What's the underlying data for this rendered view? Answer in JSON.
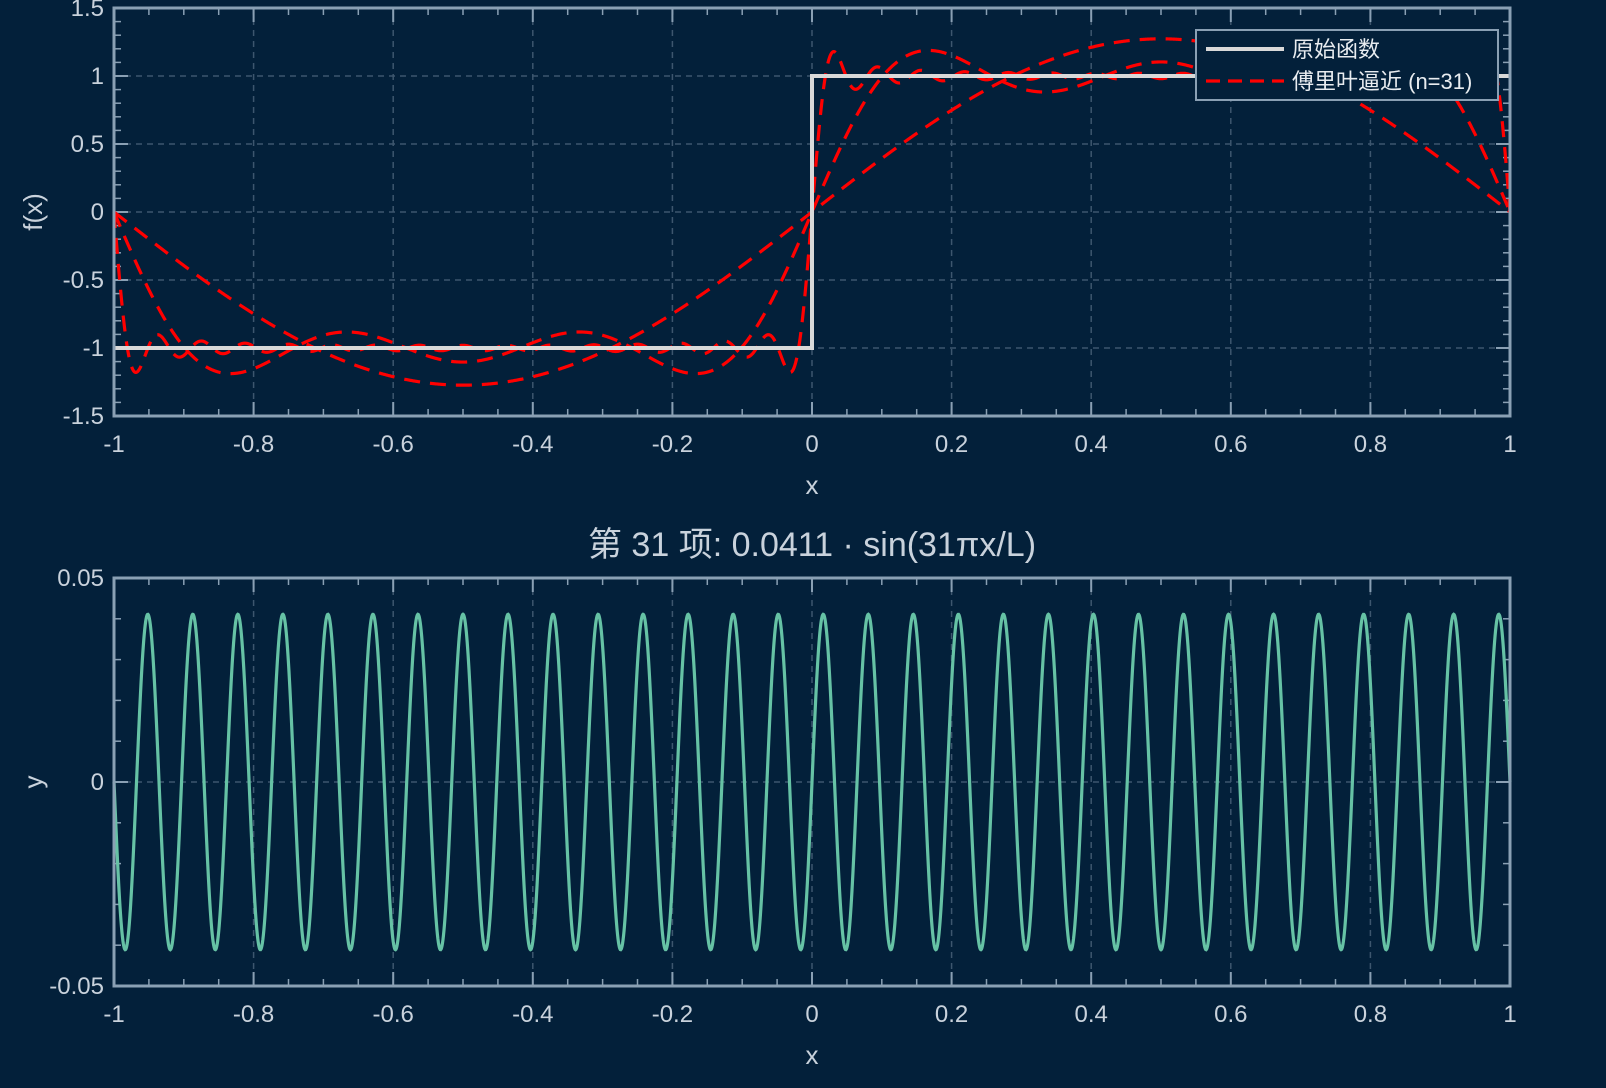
{
  "colors": {
    "background": "#03203a",
    "axes_frame": "#8aa0b4",
    "grid": "#3d566e",
    "text": "#c9d2dc",
    "original": "#d9d9d9",
    "approx": "#ff0000",
    "term": "#66c2a5"
  },
  "chart_data": [
    {
      "type": "line",
      "title": "",
      "xlabel": "x",
      "ylabel": "f(x)",
      "xlim": [
        -1,
        1
      ],
      "ylim": [
        -1.5,
        1.5
      ],
      "xticks": [
        -1,
        -0.8,
        -0.6,
        -0.4,
        -0.2,
        0,
        0.2,
        0.4,
        0.6,
        0.8,
        1
      ],
      "xtick_labels": [
        "-1",
        "-0.8",
        "-0.6",
        "-0.4",
        "-0.2",
        "0",
        "0.2",
        "0.4",
        "0.6",
        "0.8",
        "1"
      ],
      "yticks": [
        -1.5,
        -1,
        -0.5,
        0,
        0.5,
        1,
        1.5
      ],
      "ytick_labels": [
        "-1.5",
        "-1",
        "-0.5",
        "0",
        "0.5",
        "1",
        "1.5"
      ],
      "grid": true,
      "legend_position": "top-right",
      "series": [
        {
          "name": "原始函数",
          "style": "solid",
          "x": [
            -1,
            0,
            0,
            1
          ],
          "y": [
            -1,
            -1,
            1,
            1
          ]
        },
        {
          "name": "傅里叶逼近 (n=31)",
          "style": "dashed",
          "partial_sums": [
            {
              "n": 1,
              "x": [
                -1,
                -0.75,
                -0.5,
                -0.25,
                0,
                0.25,
                0.5,
                0.75,
                1
              ],
              "y": [
                0,
                -0.9,
                -1.27,
                -0.9,
                0,
                0.9,
                1.27,
                0.9,
                0
              ]
            },
            {
              "n": 5,
              "x": [
                -1,
                -0.95,
                -0.9,
                -0.8,
                -0.7,
                -0.6,
                -0.5,
                -0.4,
                -0.3,
                -0.2,
                -0.1,
                -0.05,
                0,
                0.05,
                0.1,
                0.2,
                0.3,
                0.4,
                0.5,
                0.6,
                0.7,
                0.8,
                0.9,
                0.95,
                1
              ],
              "y": [
                0,
                -0.9,
                -1.15,
                -0.95,
                -1.05,
                -0.96,
                -1.04,
                -0.96,
                -1.05,
                -0.95,
                -1.15,
                -0.9,
                0,
                0.9,
                1.15,
                0.95,
                1.05,
                0.96,
                1.04,
                0.96,
                1.05,
                0.95,
                1.15,
                0.9,
                0
              ]
            },
            {
              "n": 31,
              "x": [
                -1,
                -0.99,
                -0.98,
                -0.97,
                -0.9,
                -0.5,
                -0.1,
                -0.03,
                -0.02,
                -0.01,
                0,
                0.01,
                0.02,
                0.03,
                0.1,
                0.5,
                0.9,
                0.97,
                0.98,
                0.99,
                1
              ],
              "y": [
                0,
                -0.85,
                -1.18,
                -1.05,
                -1.0,
                -1.0,
                -1.0,
                -1.05,
                -1.18,
                -0.85,
                0,
                0.85,
                1.18,
                1.05,
                1.0,
                1.0,
                1.0,
                1.05,
                1.18,
                0.85,
                0
              ]
            }
          ]
        }
      ]
    },
    {
      "type": "line",
      "title": "第 31 项: 0.0411 · sin(31πx/L)",
      "xlabel": "x",
      "ylabel": "y",
      "xlim": [
        -1,
        1
      ],
      "ylim": [
        -0.05,
        0.05
      ],
      "xticks": [
        -1,
        -0.8,
        -0.6,
        -0.4,
        -0.2,
        0,
        0.2,
        0.4,
        0.6,
        0.8,
        1
      ],
      "xtick_labels": [
        "-1",
        "-0.8",
        "-0.6",
        "-0.4",
        "-0.2",
        "0",
        "0.2",
        "0.4",
        "0.6",
        "0.8",
        "1"
      ],
      "yticks": [
        -0.05,
        0,
        0.05
      ],
      "ytick_labels": [
        "-0.05",
        "0",
        "0.05"
      ],
      "grid": true,
      "series": [
        {
          "function": "sin",
          "amplitude": 0.0411,
          "harmonic": 31,
          "L": 1
        }
      ]
    }
  ]
}
